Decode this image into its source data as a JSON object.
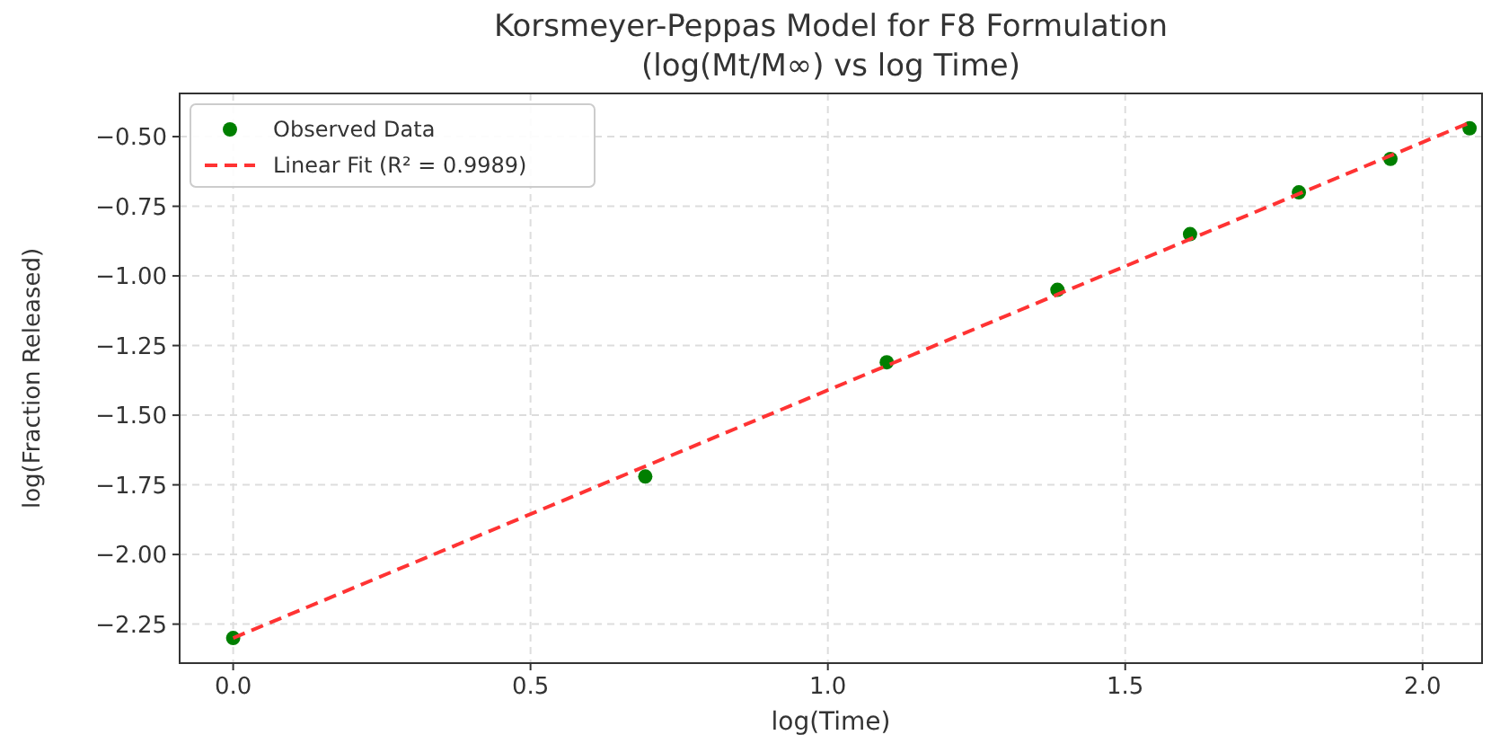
{
  "chart_data": {
    "type": "scatter",
    "title": "Korsmeyer-Peppas Model for F8 Formulation\n(log(Mt/M∞) vs log Time)",
    "xlabel": "log(Time)",
    "ylabel": "log(Fraction Released)",
    "xlim": [
      -0.09,
      2.1
    ],
    "ylim": [
      -2.39,
      -0.345
    ],
    "xticks": [
      {
        "value": 0,
        "label": "0.0"
      },
      {
        "value": 0.5,
        "label": "0.5"
      },
      {
        "value": 1,
        "label": "1.0"
      },
      {
        "value": 1.5,
        "label": "1.5"
      },
      {
        "value": 2,
        "label": "2.0"
      }
    ],
    "yticks": [
      {
        "value": -2.25,
        "label": "−2.25"
      },
      {
        "value": -2,
        "label": "−2.00"
      },
      {
        "value": -1.75,
        "label": "−1.75"
      },
      {
        "value": -1.5,
        "label": "−1.50"
      },
      {
        "value": -1.25,
        "label": "−1.25"
      },
      {
        "value": -1,
        "label": "−1.00"
      },
      {
        "value": -0.75,
        "label": "−0.75"
      },
      {
        "value": -0.5,
        "label": "−0.50"
      }
    ],
    "grid": true,
    "legend": "top left",
    "series": [
      {
        "name": "Observed Data",
        "color": "#007f00",
        "marker": "circle",
        "x": [
          0,
          0.693,
          1.099,
          1.386,
          1.609,
          1.792,
          1.946,
          2.079
        ],
        "values": [
          -2.3,
          -1.72,
          -1.31,
          -1.05,
          -0.85,
          -0.7,
          -0.58,
          -0.47
        ]
      },
      {
        "name": "Linear Fit (R² = 0.9989)",
        "type": "line",
        "color": "#ff3333",
        "line_style": "dashed",
        "x": [
          0,
          2.079
        ],
        "values": [
          -2.3,
          -0.45
        ]
      }
    ]
  }
}
